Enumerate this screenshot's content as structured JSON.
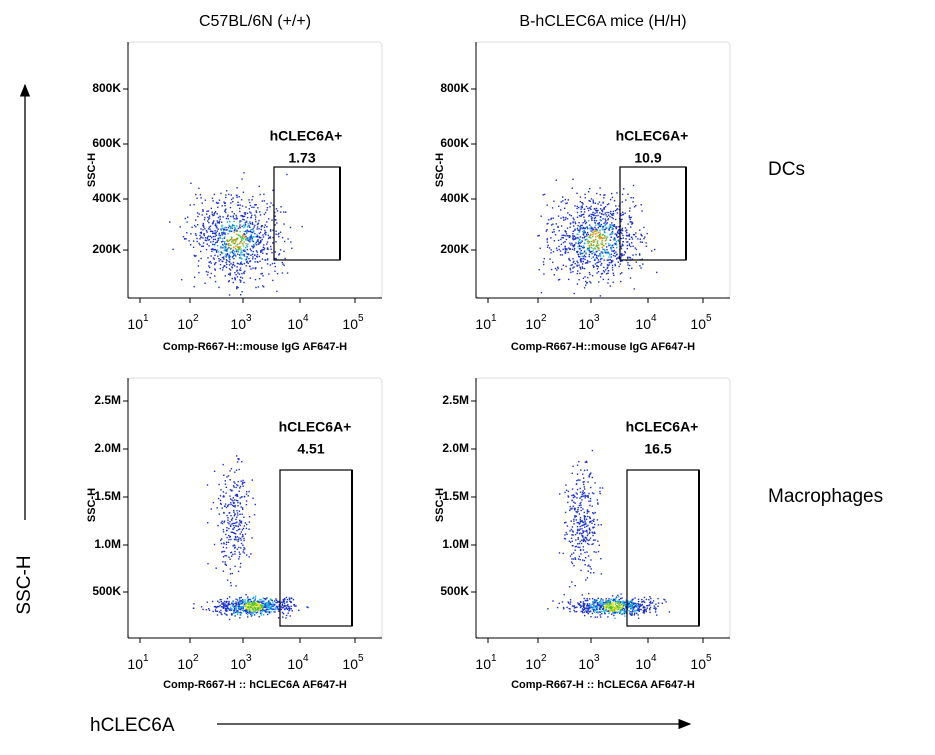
{
  "columns": [
    "C57BL/6N (+/+)",
    "B-hCLEC6A mice (H/H)"
  ],
  "rows": [
    "DCs",
    "Macrophages"
  ],
  "y_axis_title": "SSC-H",
  "x_axis_title": "hCLEC6A",
  "x_tick_base": "10",
  "x_tick_exponents": [
    "1",
    "2",
    "3",
    "4",
    "5"
  ],
  "panels": [
    {
      "y_label": "SSC-H",
      "x_label": "Comp-R667-H::mouse IgG AF647-H",
      "yticks": [
        "800K",
        "600K",
        "400K",
        "200K"
      ],
      "gate_name": "hCLEC6A+",
      "gate_value": "1.73"
    },
    {
      "y_label": "SSC-H",
      "x_label": "Comp-R667-H::mouse IgG AF647-H",
      "yticks": [
        "800K",
        "600K",
        "400K",
        "200K"
      ],
      "gate_name": "hCLEC6A+",
      "gate_value": "10.9"
    },
    {
      "y_label": "SSC-H",
      "x_label": "Comp-R667-H :: hCLEC6A AF647-H",
      "yticks": [
        "2.5M",
        "2.0M",
        "1.5M",
        "1.0M",
        "500K"
      ],
      "gate_name": "hCLEC6A+",
      "gate_value": "4.51"
    },
    {
      "y_label": "SSC-H",
      "x_label": "Comp-R667-H :: hCLEC6A AF647-H",
      "yticks": [
        "2.5M",
        "2.0M",
        "1.5M",
        "1.0M",
        "500K"
      ],
      "gate_name": "hCLEC6A+",
      "gate_value": "16.5"
    }
  ]
}
